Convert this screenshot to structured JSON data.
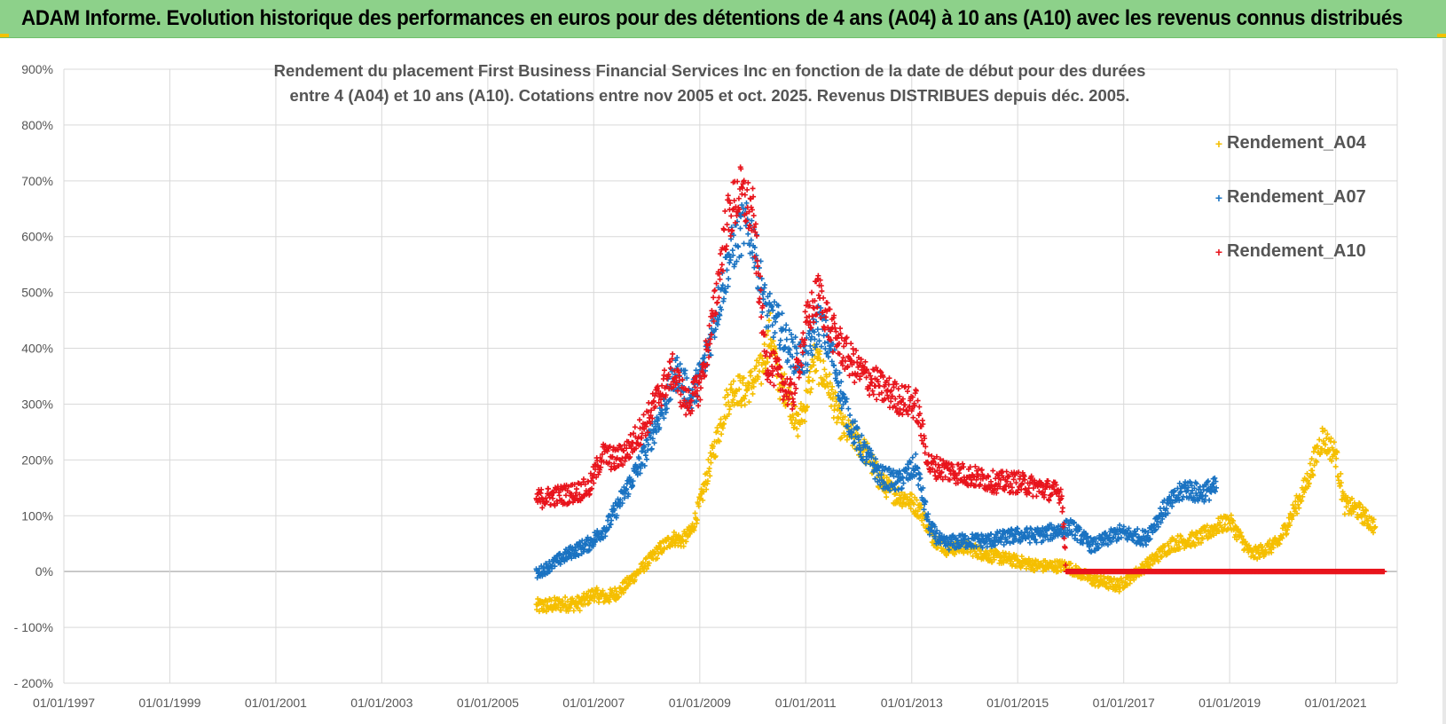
{
  "header": {
    "title": "ADAM Informe. Evolution historique des performances en euros pour des détentions de 4 ans (A04) à 10 ans (A10) avec les revenus connus distribués",
    "background": "#8dd18a"
  },
  "chart_data": {
    "type": "scatter",
    "title_line1": "Rendement du placement First Business Financial Services  Inc en fonction de la date de début pour des durées",
    "title_line2": "entre 4 (A04) et 10 ans (A10). Cotations entre nov 2005 et oct. 2025. Revenus DISTRIBUES depuis déc. 2005.",
    "xlabel": "",
    "ylabel": "",
    "xlim": [
      "1997-01-01",
      "2022-03-01"
    ],
    "ylim": [
      -200,
      900
    ],
    "x_ticks": [
      "01/01/1997",
      "01/01/1999",
      "01/01/2001",
      "01/01/2003",
      "01/01/2005",
      "01/01/2007",
      "01/01/2009",
      "01/01/2011",
      "01/01/2013",
      "01/01/2015",
      "01/01/2017",
      "01/01/2019",
      "01/01/2021"
    ],
    "y_ticks": [
      "900%",
      "800%",
      "700%",
      "600%",
      "500%",
      "400%",
      "300%",
      "200%",
      "100%",
      "0%",
      "- 100%",
      "- 200%"
    ],
    "grid": true,
    "legend_position": "top-right",
    "series": [
      {
        "name": "Rendement_A04",
        "color": "#f5bf00",
        "points": [
          [
            "2005-12-01",
            -63
          ],
          [
            "2006-06-01",
            -58
          ],
          [
            "2006-10-01",
            -57
          ],
          [
            "2007-01-01",
            -40
          ],
          [
            "2007-04-01",
            -47
          ],
          [
            "2007-07-01",
            -35
          ],
          [
            "2007-10-01",
            -10
          ],
          [
            "2008-01-01",
            15
          ],
          [
            "2008-04-01",
            40
          ],
          [
            "2008-07-01",
            60
          ],
          [
            "2008-09-01",
            55
          ],
          [
            "2008-11-01",
            70
          ],
          [
            "2009-01-01",
            120
          ],
          [
            "2009-03-01",
            180
          ],
          [
            "2009-05-01",
            240
          ],
          [
            "2009-07-01",
            300
          ],
          [
            "2009-09-01",
            330
          ],
          [
            "2009-11-01",
            320
          ],
          [
            "2010-01-01",
            340
          ],
          [
            "2010-03-01",
            360
          ],
          [
            "2010-05-01",
            430
          ],
          [
            "2010-07-01",
            340
          ],
          [
            "2010-09-01",
            320
          ],
          [
            "2010-11-01",
            260
          ],
          [
            "2011-01-01",
            300
          ],
          [
            "2011-03-01",
            380
          ],
          [
            "2011-06-01",
            340
          ],
          [
            "2011-09-01",
            260
          ],
          [
            "2011-12-01",
            240
          ],
          [
            "2012-03-01",
            210
          ],
          [
            "2012-06-01",
            160
          ],
          [
            "2012-09-01",
            140
          ],
          [
            "2012-12-01",
            130
          ],
          [
            "2013-03-01",
            110
          ],
          [
            "2013-06-01",
            60
          ],
          [
            "2013-09-01",
            40
          ],
          [
            "2014-01-01",
            45
          ],
          [
            "2014-06-01",
            30
          ],
          [
            "2014-12-01",
            20
          ],
          [
            "2015-06-01",
            10
          ],
          [
            "2015-12-01",
            10
          ],
          [
            "2016-06-01",
            -15
          ],
          [
            "2016-12-01",
            -25
          ],
          [
            "2017-06-01",
            10
          ],
          [
            "2017-12-01",
            50
          ],
          [
            "2018-06-01",
            60
          ],
          [
            "2018-10-01",
            80
          ],
          [
            "2019-01-01",
            90
          ],
          [
            "2019-06-01",
            30
          ],
          [
            "2019-12-01",
            50
          ],
          [
            "2020-06-01",
            150
          ],
          [
            "2020-10-01",
            240
          ],
          [
            "2021-01-01",
            210
          ],
          [
            "2021-03-01",
            120
          ],
          [
            "2021-06-01",
            110
          ],
          [
            "2021-10-01",
            80
          ]
        ]
      },
      {
        "name": "Rendement_A07",
        "color": "#1a73c2",
        "points": [
          [
            "2005-12-01",
            -5
          ],
          [
            "2006-04-01",
            15
          ],
          [
            "2006-08-01",
            35
          ],
          [
            "2006-12-01",
            50
          ],
          [
            "2007-04-01",
            80
          ],
          [
            "2007-08-01",
            140
          ],
          [
            "2007-12-01",
            200
          ],
          [
            "2008-04-01",
            280
          ],
          [
            "2008-08-01",
            360
          ],
          [
            "2008-11-01",
            310
          ],
          [
            "2009-02-01",
            370
          ],
          [
            "2009-05-01",
            470
          ],
          [
            "2009-08-01",
            570
          ],
          [
            "2009-11-01",
            620
          ],
          [
            "2010-01-01",
            600
          ],
          [
            "2010-04-01",
            470
          ],
          [
            "2010-07-01",
            440
          ],
          [
            "2010-10-01",
            390
          ],
          [
            "2011-01-01",
            380
          ],
          [
            "2011-04-01",
            450
          ],
          [
            "2011-07-01",
            390
          ],
          [
            "2011-10-01",
            290
          ],
          [
            "2012-01-01",
            230
          ],
          [
            "2012-06-01",
            170
          ],
          [
            "2012-10-01",
            160
          ],
          [
            "2013-02-01",
            190
          ],
          [
            "2013-05-01",
            80
          ],
          [
            "2013-08-01",
            50
          ],
          [
            "2014-01-01",
            55
          ],
          [
            "2014-06-01",
            55
          ],
          [
            "2015-01-01",
            65
          ],
          [
            "2015-06-01",
            65
          ],
          [
            "2016-01-01",
            80
          ],
          [
            "2016-06-01",
            45
          ],
          [
            "2016-12-01",
            70
          ],
          [
            "2017-06-01",
            60
          ],
          [
            "2017-10-01",
            110
          ],
          [
            "2018-03-01",
            150
          ],
          [
            "2018-06-01",
            140
          ],
          [
            "2018-10-01",
            150
          ]
        ]
      },
      {
        "name": "Rendement_A10",
        "color": "#e8141c",
        "points": [
          [
            "2005-12-01",
            130
          ],
          [
            "2006-04-01",
            135
          ],
          [
            "2006-08-01",
            140
          ],
          [
            "2006-12-01",
            150
          ],
          [
            "2007-03-01",
            210
          ],
          [
            "2007-06-01",
            200
          ],
          [
            "2007-09-01",
            220
          ],
          [
            "2008-01-01",
            270
          ],
          [
            "2008-04-01",
            320
          ],
          [
            "2008-07-01",
            360
          ],
          [
            "2008-10-01",
            300
          ],
          [
            "2009-01-01",
            330
          ],
          [
            "2009-04-01",
            450
          ],
          [
            "2009-07-01",
            620
          ],
          [
            "2009-10-01",
            680
          ],
          [
            "2010-01-01",
            640
          ],
          [
            "2010-04-01",
            380
          ],
          [
            "2010-07-01",
            350
          ],
          [
            "2010-10-01",
            310
          ],
          [
            "2011-01-01",
            440
          ],
          [
            "2011-04-01",
            500
          ],
          [
            "2011-07-01",
            430
          ],
          [
            "2011-10-01",
            390
          ],
          [
            "2012-01-01",
            360
          ],
          [
            "2012-06-01",
            330
          ],
          [
            "2012-10-01",
            310
          ],
          [
            "2013-02-01",
            300
          ],
          [
            "2013-05-01",
            190
          ],
          [
            "2013-10-01",
            180
          ],
          [
            "2014-03-01",
            170
          ],
          [
            "2014-08-01",
            160
          ],
          [
            "2015-01-01",
            160
          ],
          [
            "2015-06-01",
            150
          ],
          [
            "2015-11-01",
            140
          ],
          [
            "2015-12-01",
            0
          ],
          [
            "2017-01-01",
            0
          ],
          [
            "2018-06-01",
            0
          ],
          [
            "2020-01-01",
            0
          ],
          [
            "2021-12-01",
            0
          ]
        ]
      }
    ]
  }
}
